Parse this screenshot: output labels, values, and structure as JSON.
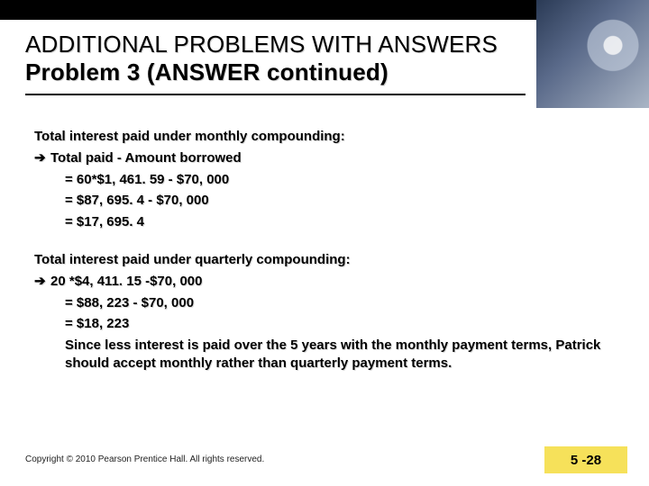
{
  "colors": {
    "topbar": "#000000",
    "accent": "#f6e15a",
    "text": "#000000",
    "bg": "#ffffff"
  },
  "heading": {
    "line1": "ADDITIONAL PROBLEMS WITH ANSWERS",
    "line2": "Problem 3  (ANSWER continued)"
  },
  "section1": {
    "title": "Total interest paid under monthly compounding:",
    "arrow": "➔",
    "l1": "Total paid - Amount borrowed",
    "l2": "= 60*$1, 461. 59 - $70, 000",
    "l3": "= $87, 695. 4 - $70, 000",
    "l4": "= $17, 695. 4"
  },
  "section2": {
    "title": "Total interest paid under quarterly compounding:",
    "arrow": "➔",
    "l1": "20 *$4, 411. 15 -$70, 000",
    "l2": "= $88, 223 - $70, 000",
    "l3": "= $18, 223",
    "l4": "Since less interest is paid over the 5 years with the monthly payment terms, Patrick should accept monthly rather than quarterly payment terms."
  },
  "footer": {
    "copyright": "Copyright © 2010 Pearson Prentice Hall. All rights reserved.",
    "pagenum": "5 -28"
  }
}
